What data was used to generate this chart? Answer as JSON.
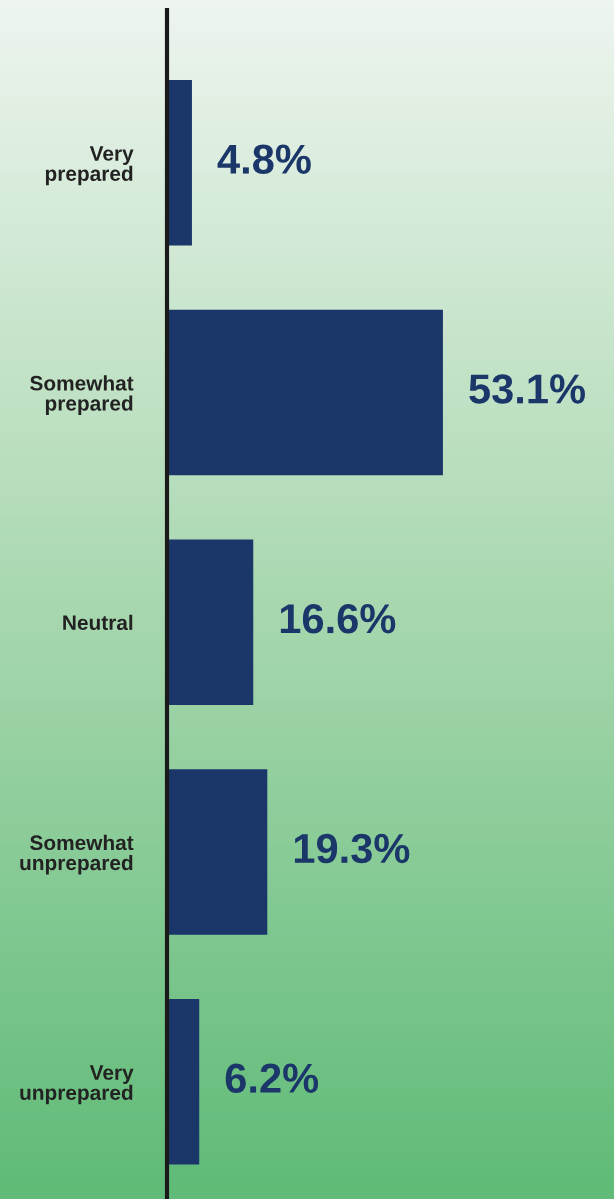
{
  "chart_data": {
    "type": "bar",
    "orientation": "horizontal",
    "categories": [
      "Very prepared",
      "Somewhat prepared",
      "Neutral",
      "Somewhat unprepared",
      "Very unprepared"
    ],
    "values": [
      4.8,
      53.1,
      16.6,
      19.3,
      6.2
    ],
    "value_labels": [
      "4.8%",
      "53.1%",
      "16.6%",
      "19.3%",
      "6.2%"
    ],
    "color": "#1b3668",
    "grid": false,
    "legend": false,
    "tick_labels": "y"
  }
}
